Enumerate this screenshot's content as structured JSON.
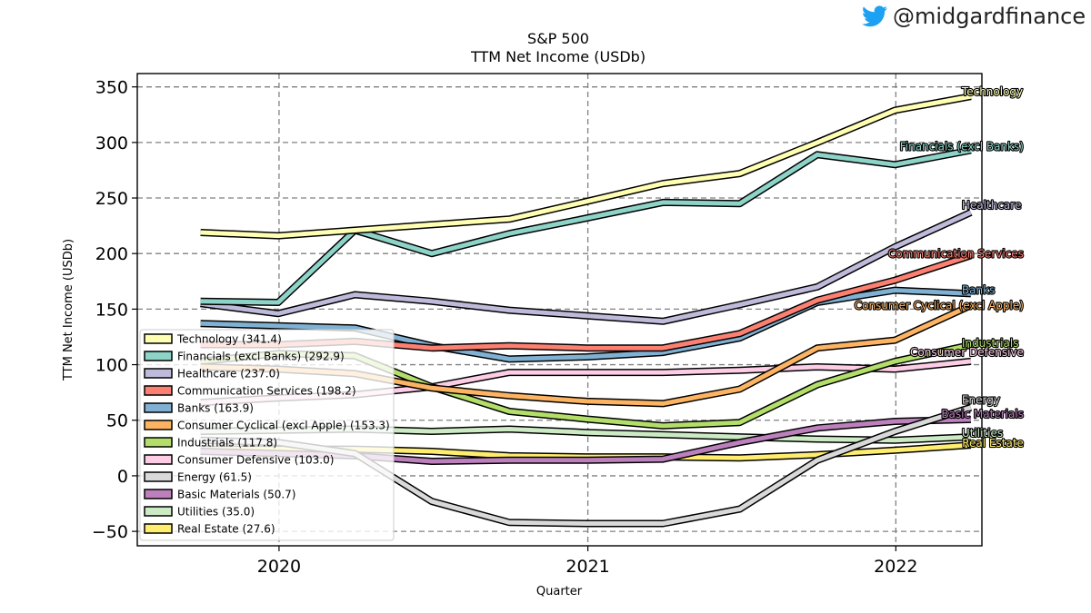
{
  "brand": {
    "handle": "@midgardfinance",
    "icon": "twitter-bird-icon",
    "icon_color": "#1da1f2"
  },
  "chart_data": {
    "type": "line",
    "title": "S&P 500",
    "subtitle": "TTM Net Income (USDb)",
    "xlabel": "Quarter",
    "ylabel": "TTM Net Income (USDb)",
    "x_ticks": [
      "2020",
      "2021",
      "2022"
    ],
    "y_ticks": [
      -50,
      0,
      50,
      100,
      150,
      200,
      250,
      300,
      350
    ],
    "xlim": [
      "2019-07-17",
      "2022-04-13"
    ],
    "ylim": [
      -63,
      362
    ],
    "grid": true,
    "legend_position": "lower-left",
    "x": [
      "2019-09-30",
      "2019-12-31",
      "2020-03-31",
      "2020-06-30",
      "2020-09-30",
      "2020-12-31",
      "2021-03-31",
      "2021-06-30",
      "2021-09-30",
      "2021-12-31",
      "2022-03-31"
    ],
    "series": [
      {
        "name": "Technology",
        "legend": "Technology (341.4)",
        "end_label": "Technology",
        "color": "#ffffb3",
        "values": [
          219,
          216,
          221,
          226,
          231,
          247,
          263,
          272,
          300,
          329,
          341.4
        ]
      },
      {
        "name": "Financials (excl Banks)",
        "legend": "Financials (excl Banks) (292.9)",
        "end_label": "Financials (excl Banks)",
        "color": "#8dd3c7",
        "values": [
          157,
          156,
          221,
          200,
          218,
          232,
          246,
          245,
          289,
          280,
          292.9
        ]
      },
      {
        "name": "Healthcare",
        "legend": "Healthcare (237.0)",
        "end_label": "Healthcare",
        "color": "#bebada",
        "values": [
          155,
          146,
          163,
          157,
          149,
          144,
          139,
          154,
          170,
          206,
          237.0
        ]
      },
      {
        "name": "Communication Services",
        "legend": "Communication Services (198.2)",
        "end_label": "Communication Services",
        "color": "#fb8072",
        "values": [
          118,
          118,
          121,
          115,
          117,
          115,
          115,
          128,
          158,
          176,
          198.2
        ]
      },
      {
        "name": "Banks",
        "legend": "Banks (163.9)",
        "end_label": "Banks",
        "color": "#80b1d3",
        "values": [
          137,
          135,
          133,
          117,
          105,
          107,
          111,
          124,
          156,
          167,
          163.9
        ]
      },
      {
        "name": "Consumer Cyclical (excl Apple)",
        "legend": "Consumer Cyclical (excl Apple) (153.3)",
        "end_label": "Consumer Cyclical (excl Apple)",
        "color": "#fdb462",
        "values": [
          98,
          96,
          92,
          79,
          72,
          67,
          65,
          78,
          115,
          122,
          153.3
        ]
      },
      {
        "name": "Industrials",
        "legend": "Industrials (117.8)",
        "end_label": "Industrials",
        "color": "#b3de69",
        "values": [
          103,
          110,
          108,
          80,
          58,
          51,
          45,
          48,
          82,
          103,
          117.8
        ]
      },
      {
        "name": "Consumer Defensive",
        "legend": "Consumer Defensive (103.0)",
        "end_label": "Consumer Defensive",
        "color": "#fccde5",
        "values": [
          66,
          70,
          73,
          80,
          93,
          93,
          93,
          95,
          98,
          96,
          103.0
        ]
      },
      {
        "name": "Energy",
        "legend": "Energy (61.5)",
        "end_label": "Energy",
        "color": "#d9d9d9",
        "values": [
          32,
          30,
          20,
          -23,
          -42,
          -43,
          -43,
          -30,
          14,
          40,
          61.5
        ]
      },
      {
        "name": "Basic Materials",
        "legend": "Basic Materials (50.7)",
        "end_label": "Basic Materials",
        "color": "#bc80bd",
        "values": [
          22,
          20,
          18,
          13,
          14,
          14,
          15,
          30,
          43,
          49,
          50.7
        ]
      },
      {
        "name": "Utilities",
        "legend": "Utilities (35.0)",
        "end_label": "Utilities",
        "color": "#ccebc5",
        "values": [
          40,
          41,
          42,
          40,
          42,
          39,
          37,
          35,
          33,
          32,
          35.0
        ]
      },
      {
        "name": "Real Estate",
        "legend": "Real Estate (27.6)",
        "end_label": "Real Estate",
        "color": "#ffed6f",
        "values": [
          24,
          24,
          24,
          22,
          18,
          17,
          17,
          16,
          19,
          23,
          27.6
        ]
      }
    ]
  }
}
